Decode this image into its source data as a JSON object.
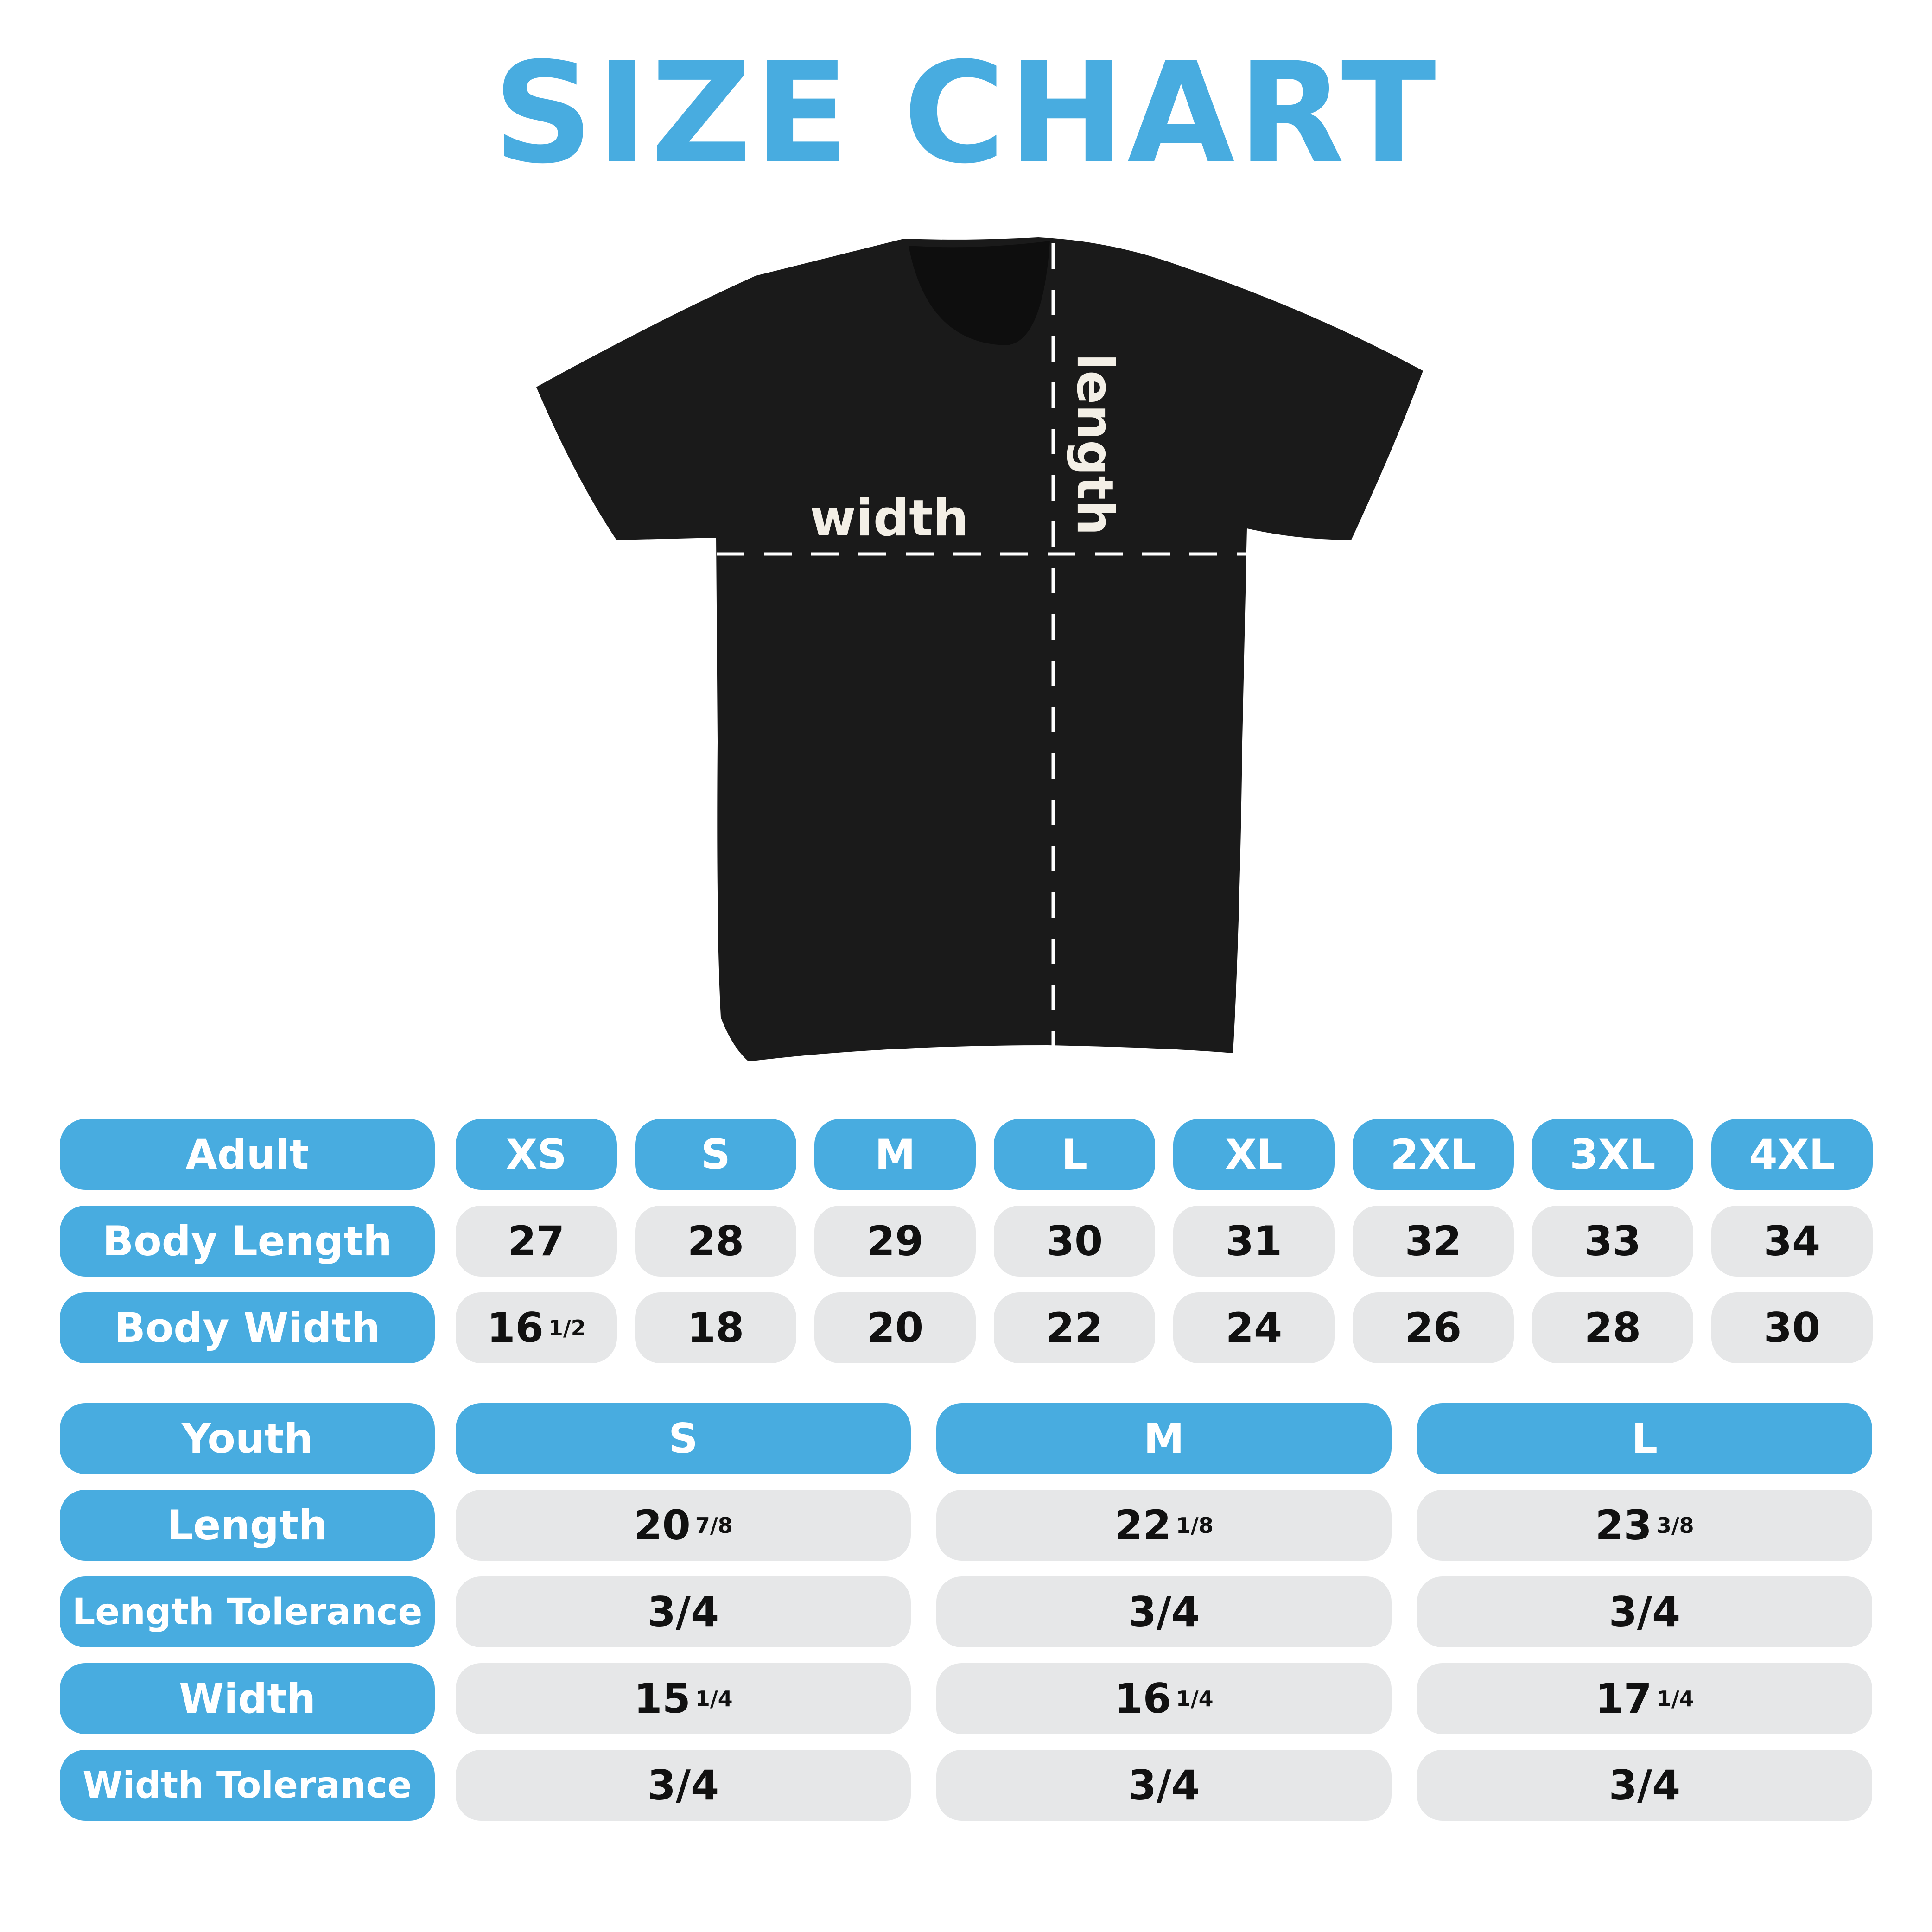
{
  "title": "SIZE CHART",
  "diagram": {
    "width_label": "width",
    "length_label": "length",
    "shirt_color": "#1a1a1a",
    "accent": "#48ACE0",
    "cell_bg": "#E6E7E8"
  },
  "adult": {
    "header": "Adult",
    "sizes": [
      "XS",
      "S",
      "M",
      "L",
      "XL",
      "2XL",
      "3XL",
      "4XL"
    ],
    "rows": [
      {
        "label": "Body Length",
        "values": [
          {
            "v": "27"
          },
          {
            "v": "28"
          },
          {
            "v": "29"
          },
          {
            "v": "30"
          },
          {
            "v": "31"
          },
          {
            "v": "32"
          },
          {
            "v": "33"
          },
          {
            "v": "34"
          }
        ]
      },
      {
        "label": "Body Width",
        "values": [
          {
            "v": "16",
            "f": "1/2"
          },
          {
            "v": "18"
          },
          {
            "v": "20"
          },
          {
            "v": "22"
          },
          {
            "v": "24"
          },
          {
            "v": "26"
          },
          {
            "v": "28"
          },
          {
            "v": "30"
          }
        ]
      }
    ]
  },
  "youth": {
    "header": "Youth",
    "sizes": [
      "S",
      "M",
      "L"
    ],
    "rows": [
      {
        "label": "Length",
        "values": [
          {
            "v": "20",
            "f": "7/8"
          },
          {
            "v": "22",
            "f": "1/8"
          },
          {
            "v": "23",
            "f": "3/8"
          }
        ]
      },
      {
        "label": "Length Tolerance",
        "values": [
          {
            "v": "3/4"
          },
          {
            "v": "3/4"
          },
          {
            "v": "3/4"
          }
        ]
      },
      {
        "label": "Width",
        "values": [
          {
            "v": "15",
            "f": "1/4"
          },
          {
            "v": "16",
            "f": "1/4"
          },
          {
            "v": "17",
            "f": "1/4"
          }
        ]
      },
      {
        "label": "Width Tolerance",
        "values": [
          {
            "v": "3/4"
          },
          {
            "v": "3/4"
          },
          {
            "v": "3/4"
          }
        ]
      }
    ]
  }
}
